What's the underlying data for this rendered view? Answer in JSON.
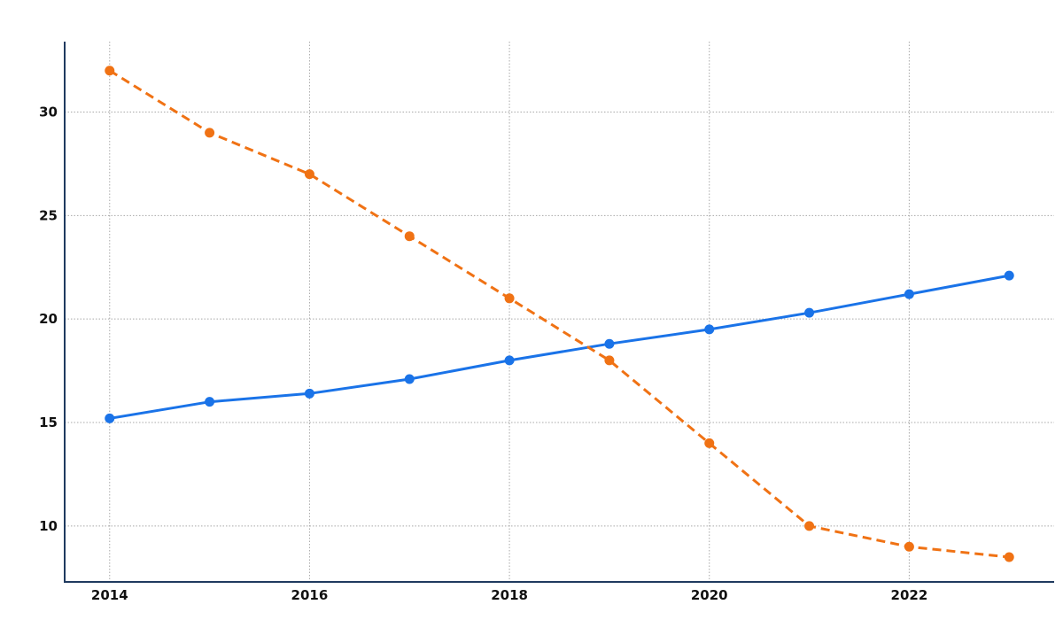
{
  "chart_data": {
    "type": "line",
    "title": "",
    "xlabel": "",
    "ylabel": "",
    "x": [
      2014,
      2015,
      2016,
      2017,
      2018,
      2019,
      2020,
      2021,
      2022,
      2023
    ],
    "xlim": [
      2013.55,
      2023.45
    ],
    "ylim": [
      7.3,
      33.4
    ],
    "x_ticks": [
      "2014",
      "2016",
      "2018",
      "2020",
      "2022"
    ],
    "y_ticks": [
      "10",
      "15",
      "20",
      "25",
      "30"
    ],
    "grid": true,
    "legend": "none",
    "series": [
      {
        "values": [
          15.2,
          16.0,
          16.4,
          17.1,
          18.0,
          18.8,
          19.5,
          20.3,
          21.2,
          22.1
        ],
        "color": "#1a73e8",
        "line_style": "solid"
      },
      {
        "values": [
          32.0,
          29.0,
          27.0,
          24.0,
          21.0,
          18.0,
          14.0,
          10.0,
          9.0,
          8.5
        ],
        "color": "#f07214",
        "line_style": "dashed"
      }
    ]
  }
}
